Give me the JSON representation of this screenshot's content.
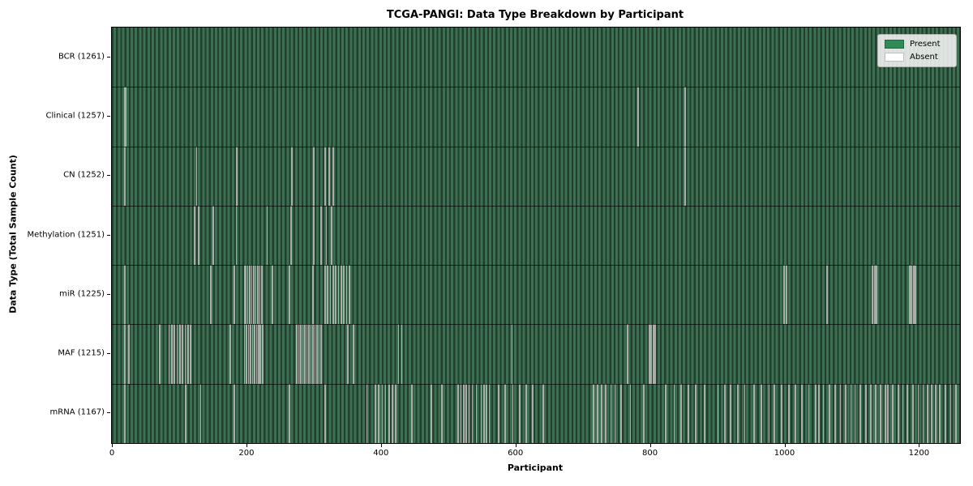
{
  "chart_data": {
    "type": "heatmap",
    "title": "TCGA-PANGI: Data Type Breakdown by Participant",
    "xlabel": "Participant",
    "ylabel": "Data Type (Total Sample Count)",
    "x_ticks": [
      0,
      200,
      400,
      600,
      800,
      1000,
      1200
    ],
    "x_range": [
      0,
      1261
    ],
    "n_participants": 1261,
    "grid": false,
    "legend_position": "upper right",
    "legend": [
      {
        "label": "Present",
        "color": "#2e8b57"
      },
      {
        "label": "Absent",
        "color": "#ffffff"
      }
    ],
    "colors": {
      "present": "#2e8b57",
      "absent": "#ffffff",
      "stripe_light": "#3e6f52",
      "stripe_dark": "#203f2e",
      "absent_line": "#a9aea9",
      "row_separator": "#10241a"
    },
    "rows": [
      {
        "data_type": "BCR",
        "present_count": 1261,
        "label": "BCR (1261)",
        "absent_participants": []
      },
      {
        "data_type": "Clinical",
        "present_count": 1257,
        "label": "Clinical (1257)",
        "absent_participants": [
          18,
          20,
          781,
          851
        ]
      },
      {
        "data_type": "CN",
        "present_count": 1252,
        "label": "CN (1252)",
        "absent_participants": [
          18,
          125,
          185,
          267,
          299,
          316,
          322,
          328,
          851
        ]
      },
      {
        "data_type": "Methylation",
        "present_count": 1251,
        "label": "Methylation (1251)",
        "absent_participants": [
          122,
          128,
          150,
          184,
          230,
          265,
          299,
          310,
          318,
          326
        ]
      },
      {
        "data_type": "miR",
        "present_count": 1225,
        "label": "miR (1225)",
        "absent_participants": [
          18,
          146,
          181,
          196,
          198,
          201,
          204,
          207,
          210,
          213,
          216,
          219,
          222,
          238,
          263,
          298,
          316,
          320,
          324,
          328,
          332,
          336,
          340,
          344,
          348,
          352,
          998,
          1002,
          1062,
          1130,
          1133,
          1136,
          1185,
          1188,
          1191,
          1194
        ]
      },
      {
        "data_type": "MAF",
        "present_count": 1215,
        "label": "MAF (1215)",
        "absent_participants": [
          18,
          24,
          70,
          84,
          88,
          92,
          96,
          100,
          104,
          108,
          112,
          116,
          175,
          196,
          199,
          202,
          205,
          208,
          211,
          214,
          217,
          220,
          223,
          274,
          277,
          280,
          283,
          286,
          289,
          292,
          295,
          298,
          301,
          304,
          307,
          310,
          350,
          358,
          425,
          430,
          594,
          766,
          798,
          801,
          804,
          807
        ]
      },
      {
        "data_type": "mRNA",
        "present_count": 1167,
        "label": "mRNA (1167)",
        "absent_participants": [
          18,
          109,
          131,
          181,
          263,
          316,
          378,
          391,
          396,
          401,
          406,
          411,
          416,
          421,
          445,
          474,
          490,
          514,
          518,
          522,
          526,
          530,
          535,
          541,
          548,
          552,
          556,
          560,
          574,
          584,
          595,
          605,
          615,
          625,
          640,
          715,
          721,
          727,
          733,
          741,
          747,
          756,
          770,
          790,
          822,
          835,
          845,
          856,
          867,
          880,
          900,
          910,
          919,
          930,
          940,
          954,
          965,
          976,
          984,
          995,
          1006,
          1015,
          1025,
          1035,
          1045,
          1050,
          1057,
          1066,
          1074,
          1082,
          1090,
          1098,
          1104,
          1112,
          1120,
          1127,
          1135,
          1142,
          1149,
          1153,
          1160,
          1168,
          1175,
          1182,
          1190,
          1198,
          1205,
          1212,
          1218,
          1224,
          1230,
          1238,
          1246,
          1254
        ]
      }
    ]
  }
}
